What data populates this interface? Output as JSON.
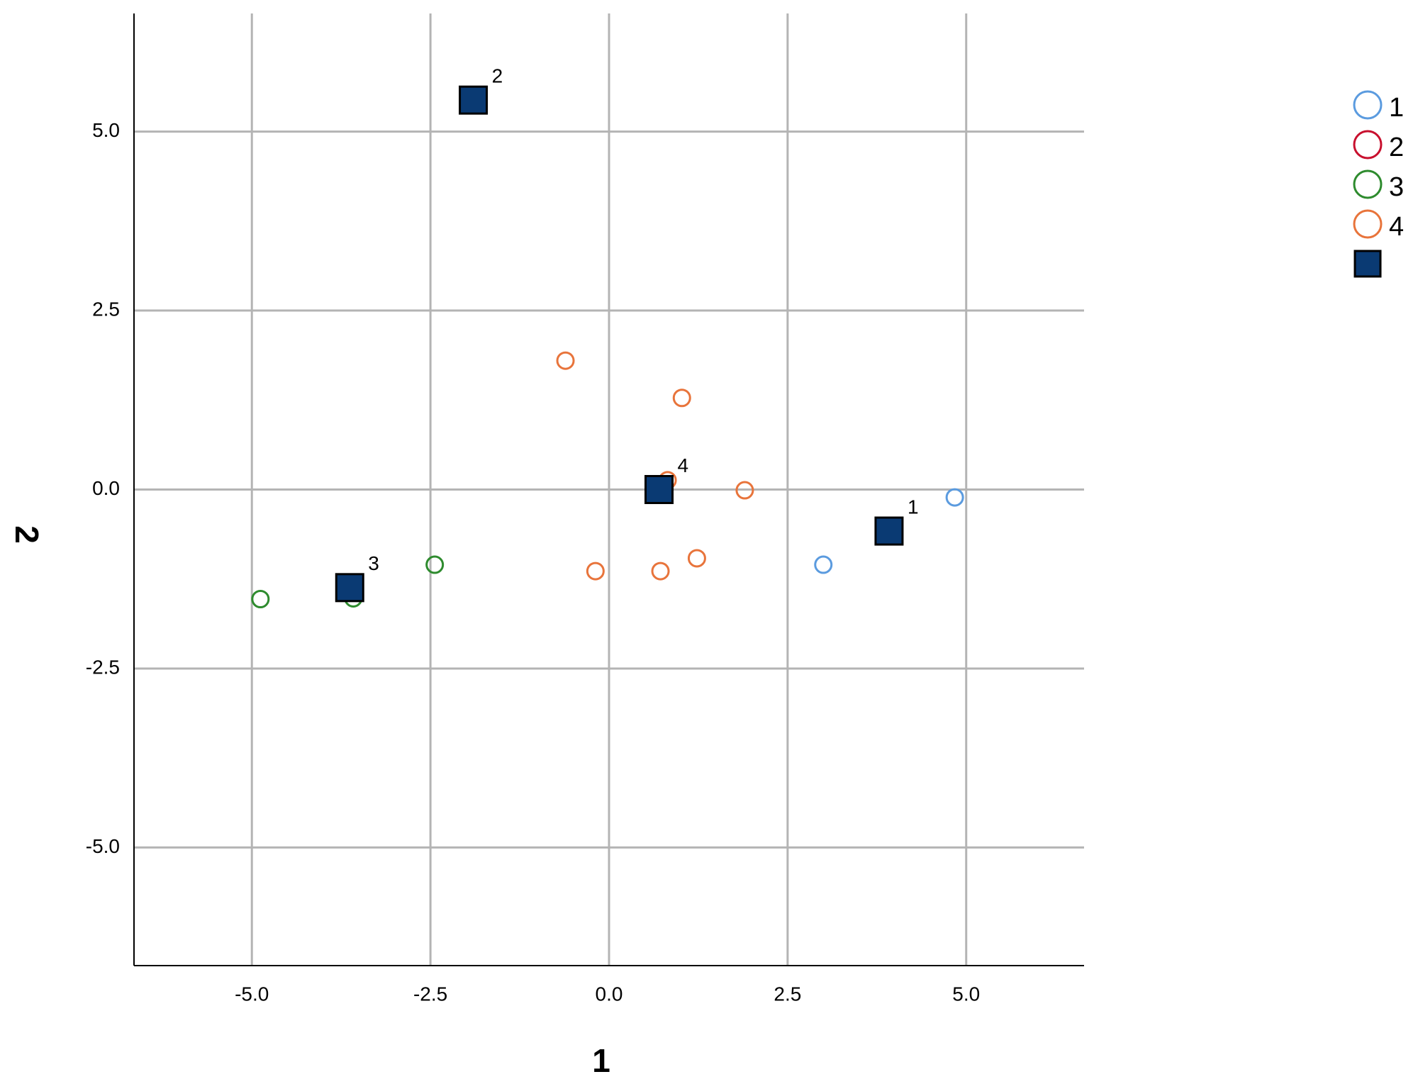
{
  "chart_data": {
    "type": "scatter",
    "x_label": "1",
    "y_label": "2",
    "xlim": [
      -6.65,
      6.65
    ],
    "ylim": [
      -6.65,
      6.65
    ],
    "xticks": [
      {
        "value": -5,
        "label": "-5.0"
      },
      {
        "value": -2.5,
        "label": "-2.5"
      },
      {
        "value": 0,
        "label": "0.0"
      },
      {
        "value": 2.5,
        "label": "2.5"
      },
      {
        "value": 5,
        "label": "5.0"
      }
    ],
    "yticks": [
      {
        "value": -5,
        "label": "-5.0"
      },
      {
        "value": -2.5,
        "label": "-2.5"
      },
      {
        "value": 0,
        "label": "0.0"
      },
      {
        "value": 2.5,
        "label": "2.5"
      },
      {
        "value": 5,
        "label": "5.0"
      }
    ],
    "grid": true,
    "series": [
      {
        "name": "1",
        "color": "#5b9bdf",
        "x": [
          3.0,
          4.84
        ],
        "y": [
          -1.05,
          -0.11
        ]
      },
      {
        "name": "2",
        "color": "#c8102e",
        "x": [],
        "y": []
      },
      {
        "name": "3",
        "color": "#2e8b2e",
        "x": [
          -4.88,
          -3.58,
          -2.44
        ],
        "y": [
          -1.53,
          -1.52,
          -1.05
        ]
      },
      {
        "name": "4",
        "color": "#e8743b",
        "x": [
          -0.61,
          1.02,
          0.82,
          1.9,
          -0.19,
          0.72,
          1.23
        ],
        "y": [
          1.8,
          1.28,
          0.13,
          -0.01,
          -1.14,
          -1.14,
          -0.96
        ]
      }
    ],
    "centroids": {
      "color": "#0a3a73",
      "labels": [
        "1",
        "2",
        "3",
        "4"
      ],
      "x": [
        3.92,
        -1.9,
        -3.63,
        0.7
      ],
      "y": [
        -0.58,
        5.44,
        -1.37,
        0.0
      ]
    }
  }
}
